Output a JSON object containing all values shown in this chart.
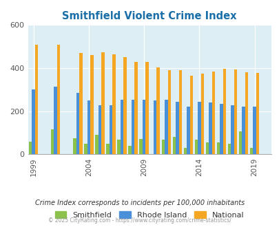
{
  "title": "Smithfield Violent Crime Index",
  "title_color": "#1a6fa8",
  "years": [
    1999,
    2000,
    2001,
    2002,
    2003,
    2004,
    2005,
    2006,
    2007,
    2008,
    2009,
    2010,
    2011,
    2012,
    2013,
    2014,
    2015,
    2016,
    2017,
    2018,
    2019
  ],
  "smithfield": [
    60,
    0,
    115,
    0,
    75,
    48,
    92,
    48,
    68,
    40,
    73,
    0,
    68,
    80,
    30,
    68,
    57,
    55,
    50,
    105,
    30
  ],
  "rhode_island": [
    300,
    0,
    315,
    0,
    285,
    250,
    228,
    228,
    252,
    252,
    252,
    250,
    252,
    243,
    220,
    245,
    242,
    235,
    228,
    220,
    220
  ],
  "national": [
    510,
    0,
    510,
    0,
    470,
    462,
    473,
    464,
    452,
    430,
    430,
    404,
    390,
    390,
    365,
    375,
    383,
    398,
    394,
    382,
    379
  ],
  "smithfield_color": "#8bc34a",
  "rhode_island_color": "#4a90d9",
  "national_color": "#f5a623",
  "plot_bg": "#ddeef4",
  "ylim": [
    0,
    600
  ],
  "yticks": [
    0,
    200,
    400,
    600
  ],
  "xtick_years": [
    1999,
    2004,
    2009,
    2014,
    2019
  ],
  "footnote1": "Crime Index corresponds to incidents per 100,000 inhabitants",
  "footnote2": "© 2025 CityRating.com - https://www.cityrating.com/crime-statistics/",
  "legend_labels": [
    "Smithfield",
    "Rhode Island",
    "National"
  ]
}
